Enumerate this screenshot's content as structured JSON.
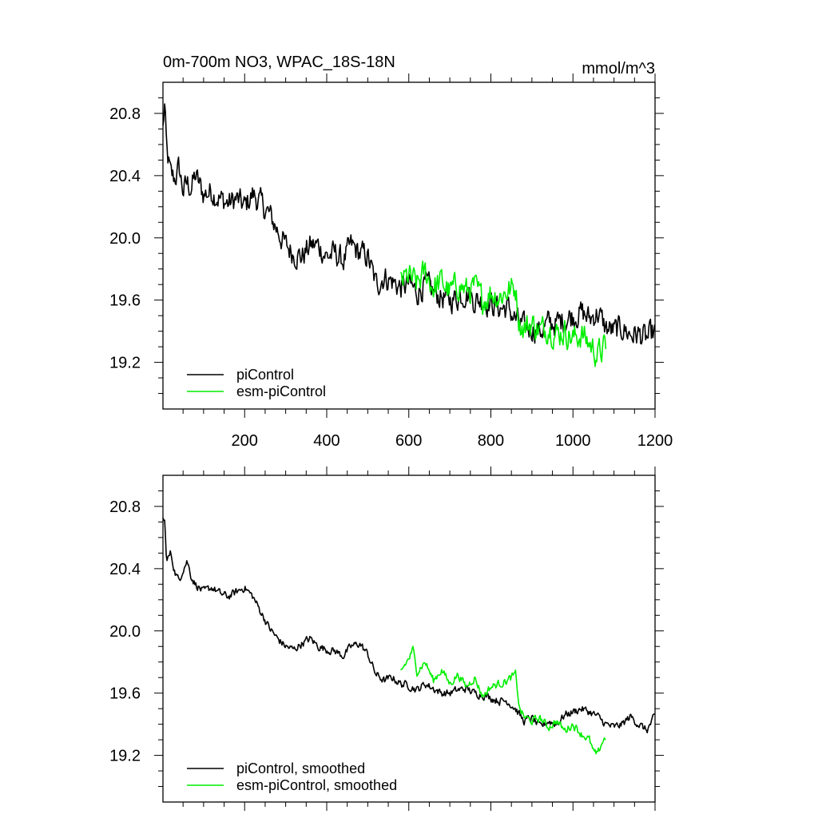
{
  "colors": {
    "piControl": "#000000",
    "esm_piControl": "#00ee00",
    "background": "#ffffff"
  },
  "chart_data": [
    {
      "type": "line",
      "title": "0m-700m NO3, WPAC_18S-18N",
      "units": "mmol/m^3",
      "xlabel": "",
      "ylabel": "",
      "xlim": [
        1,
        1200
      ],
      "ylim": [
        18.9,
        21.0
      ],
      "xticks": [
        200,
        400,
        600,
        800,
        1000,
        1200
      ],
      "xtick_labels": [
        "200",
        "400",
        "600",
        "800",
        "1000",
        "1200"
      ],
      "yticks": [
        19.2,
        19.6,
        20.0,
        20.4,
        20.8
      ],
      "ytick_labels": [
        "19.2",
        "19.6",
        "20.0",
        "20.4",
        "20.8"
      ],
      "legend_position": "bottom-left",
      "series": [
        {
          "name": "piControl",
          "color": "#000000",
          "x": [
            1,
            5,
            10,
            20,
            30,
            40,
            50,
            60,
            70,
            80,
            100,
            120,
            140,
            160,
            180,
            200,
            220,
            240,
            260,
            280,
            300,
            320,
            340,
            360,
            380,
            400,
            420,
            440,
            460,
            480,
            500,
            520,
            540,
            560,
            580,
            600,
            620,
            640,
            660,
            680,
            700,
            720,
            740,
            760,
            780,
            800,
            820,
            840,
            860,
            880,
            900,
            920,
            940,
            960,
            980,
            1000,
            1020,
            1040,
            1060,
            1080,
            1100,
            1120,
            1140,
            1160,
            1180,
            1200
          ],
          "y": [
            20.7,
            20.85,
            20.55,
            20.4,
            20.38,
            20.45,
            20.3,
            20.35,
            20.32,
            20.4,
            20.28,
            20.3,
            20.25,
            20.22,
            20.25,
            20.2,
            20.28,
            20.22,
            20.15,
            20.05,
            19.95,
            19.9,
            19.88,
            19.95,
            19.95,
            19.88,
            19.9,
            19.85,
            19.95,
            19.9,
            19.88,
            19.7,
            19.75,
            19.72,
            19.68,
            19.7,
            19.65,
            19.7,
            19.65,
            19.62,
            19.6,
            19.62,
            19.65,
            19.6,
            19.6,
            19.58,
            19.55,
            19.55,
            19.48,
            19.42,
            19.42,
            19.4,
            19.45,
            19.45,
            19.48,
            19.5,
            19.52,
            19.48,
            19.52,
            19.42,
            19.4,
            19.42,
            19.38,
            19.38,
            19.35,
            19.4
          ],
          "noise_amplitude": 0.13
        },
        {
          "name": "esm-piControl",
          "color": "#00ee00",
          "x": [
            580,
            600,
            620,
            640,
            660,
            680,
            700,
            720,
            740,
            760,
            780,
            800,
            820,
            840,
            860,
            870,
            880,
            900,
            920,
            940,
            960,
            980,
            1000,
            1020,
            1040,
            1060,
            1080
          ],
          "y": [
            19.72,
            19.75,
            19.7,
            19.78,
            19.68,
            19.72,
            19.65,
            19.7,
            19.66,
            19.68,
            19.6,
            19.65,
            19.62,
            19.66,
            19.68,
            19.45,
            19.42,
            19.45,
            19.4,
            19.43,
            19.38,
            19.4,
            19.35,
            19.38,
            19.32,
            19.25,
            19.3
          ],
          "noise_amplitude": 0.14
        }
      ]
    },
    {
      "type": "line",
      "title": "",
      "units": "",
      "xlabel": "",
      "ylabel": "",
      "xlim": [
        1,
        1200
      ],
      "ylim": [
        18.9,
        21.0
      ],
      "xticks": [
        200,
        400,
        600,
        800,
        1000,
        1200
      ],
      "xtick_labels": [],
      "yticks": [
        19.2,
        19.6,
        20.0,
        20.4,
        20.8
      ],
      "ytick_labels": [
        "19.2",
        "19.6",
        "20.0",
        "20.4",
        "20.8"
      ],
      "legend_position": "bottom-left",
      "series": [
        {
          "name": "piControl, smoothed",
          "color": "#000000",
          "x": [
            1,
            5,
            10,
            20,
            30,
            40,
            50,
            60,
            70,
            80,
            100,
            120,
            140,
            160,
            180,
            200,
            220,
            240,
            260,
            280,
            300,
            320,
            340,
            360,
            380,
            400,
            420,
            440,
            460,
            480,
            500,
            520,
            540,
            560,
            580,
            600,
            620,
            640,
            660,
            680,
            700,
            720,
            740,
            760,
            780,
            800,
            820,
            840,
            860,
            880,
            900,
            920,
            940,
            960,
            980,
            1000,
            1020,
            1040,
            1060,
            1080,
            1100,
            1120,
            1140,
            1160,
            1180,
            1200
          ],
          "y": [
            20.72,
            20.7,
            20.45,
            20.5,
            20.38,
            20.32,
            20.4,
            20.45,
            20.35,
            20.3,
            20.25,
            20.28,
            20.24,
            20.22,
            20.25,
            20.28,
            20.22,
            20.12,
            20.02,
            19.95,
            19.9,
            19.88,
            19.92,
            19.95,
            19.9,
            19.88,
            19.87,
            19.84,
            19.9,
            19.92,
            19.85,
            19.72,
            19.68,
            19.7,
            19.66,
            19.65,
            19.62,
            19.66,
            19.63,
            19.6,
            19.6,
            19.62,
            19.63,
            19.6,
            19.59,
            19.57,
            19.55,
            19.55,
            19.5,
            19.42,
            19.44,
            19.38,
            19.42,
            19.4,
            19.46,
            19.48,
            19.5,
            19.48,
            19.45,
            19.4,
            19.38,
            19.4,
            19.45,
            19.4,
            19.36,
            19.45
          ],
          "noise_amplitude": 0.04
        },
        {
          "name": "esm-piControl, smoothed",
          "color": "#00ee00",
          "x": [
            580,
            600,
            610,
            620,
            640,
            660,
            680,
            700,
            720,
            740,
            760,
            780,
            800,
            820,
            840,
            860,
            870,
            880,
            900,
            920,
            940,
            960,
            980,
            1000,
            1020,
            1040,
            1050,
            1060,
            1070,
            1080
          ],
          "y": [
            19.74,
            19.82,
            19.88,
            19.74,
            19.8,
            19.68,
            19.75,
            19.66,
            19.72,
            19.64,
            19.7,
            19.58,
            19.64,
            19.66,
            19.68,
            19.72,
            19.5,
            19.45,
            19.42,
            19.44,
            19.38,
            19.42,
            19.36,
            19.4,
            19.34,
            19.3,
            19.22,
            19.2,
            19.28,
            19.32
          ],
          "noise_amplitude": 0.04
        }
      ]
    }
  ]
}
